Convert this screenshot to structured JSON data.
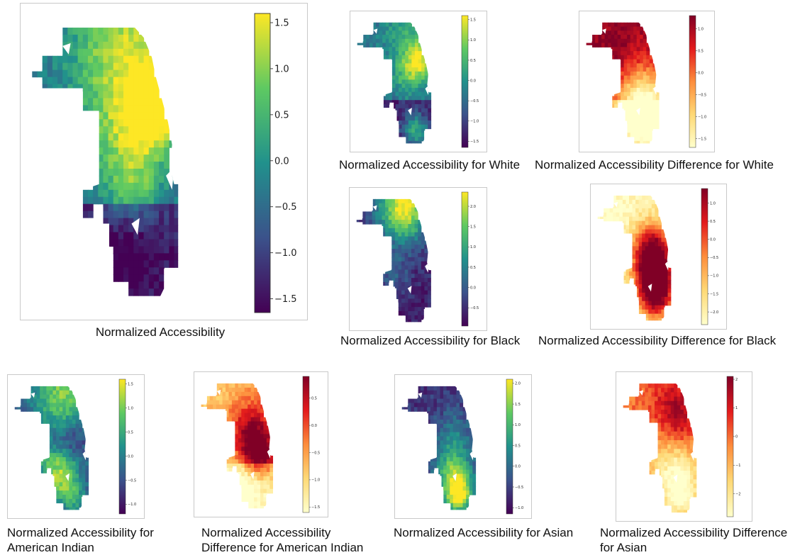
{
  "colormaps": {
    "viridis": [
      "#440154",
      "#3b528b",
      "#21918c",
      "#5ec962",
      "#fde725"
    ],
    "ylorrd_reversed": [
      "#ffffcc",
      "#fed976",
      "#fd8d3c",
      "#e31a1c",
      "#800026"
    ]
  },
  "panels": [
    {
      "id": "main",
      "caption": "Normalized Accessibility",
      "colormap": "viridis",
      "colorbar_min": -1.65,
      "colorbar_max": 1.6,
      "colorbar_ticks": [
        "1.5",
        "1.0",
        "0.5",
        "0.0",
        "−0.5",
        "−1.0",
        "−1.5"
      ]
    },
    {
      "id": "white",
      "caption": "Normalized Accessibility for White",
      "colormap": "viridis",
      "colorbar_min": -1.65,
      "colorbar_max": 1.6,
      "colorbar_ticks": [
        "1.5",
        "1.0",
        "0.5",
        "0.0",
        "−0.5",
        "−1.0",
        "−1.5"
      ]
    },
    {
      "id": "white-diff",
      "caption": "Normalized Accessibility Difference for White",
      "colormap": "ylorrd_reversed",
      "colorbar_min": -1.7,
      "colorbar_max": 1.3,
      "colorbar_ticks": [
        "1.0",
        "0.5",
        "0.0",
        "−0.5",
        "−1.0",
        "−1.5"
      ]
    },
    {
      "id": "black",
      "caption": "Normalized Accessibility for Black",
      "colormap": "viridis",
      "colorbar_min": -0.95,
      "colorbar_max": 2.35,
      "colorbar_ticks": [
        "2.0",
        "1.5",
        "1.0",
        "0.5",
        "0.0",
        "−0.5"
      ]
    },
    {
      "id": "black-diff",
      "caption": "Normalized Accessibility Difference for Black",
      "colormap": "ylorrd_reversed",
      "colorbar_min": -2.35,
      "colorbar_max": 1.4,
      "colorbar_ticks": [
        "1.0",
        "0.5",
        "0.0",
        "−0.5",
        "−1.0",
        "−1.5",
        "−2.0"
      ]
    },
    {
      "id": "american-indian",
      "caption_lines": [
        "Normalized Accessibility for",
        "American Indian"
      ],
      "colormap": "viridis",
      "colorbar_min": -1.2,
      "colorbar_max": 1.6,
      "colorbar_ticks": [
        "1.5",
        "1.0",
        "0.5",
        "0.0",
        "−0.5",
        "−1.0"
      ]
    },
    {
      "id": "american-indian-diff",
      "caption_lines": [
        "Normalized Accessibility",
        "Difference for American Indian"
      ],
      "colormap": "ylorrd_reversed",
      "colorbar_min": -1.6,
      "colorbar_max": 0.9,
      "colorbar_ticks": [
        "0.5",
        "0.0",
        "−0.5",
        "−1.0",
        "−1.5"
      ]
    },
    {
      "id": "asian",
      "caption": "Normalized Accessibility for Asian",
      "colormap": "viridis",
      "colorbar_min": -1.15,
      "colorbar_max": 2.1,
      "colorbar_ticks": [
        "2.0",
        "1.5",
        "1.0",
        "0.5",
        "0.0",
        "−0.5",
        "−1.0"
      ]
    },
    {
      "id": "asian-diff",
      "caption_lines": [
        "Normalized Accessibility Difference",
        "for Asian"
      ],
      "colormap": "ylorrd_reversed",
      "colorbar_min": -2.8,
      "colorbar_max": 2.1,
      "colorbar_ticks": [
        "2",
        "1",
        "0",
        "−1",
        "−2"
      ]
    }
  ]
}
